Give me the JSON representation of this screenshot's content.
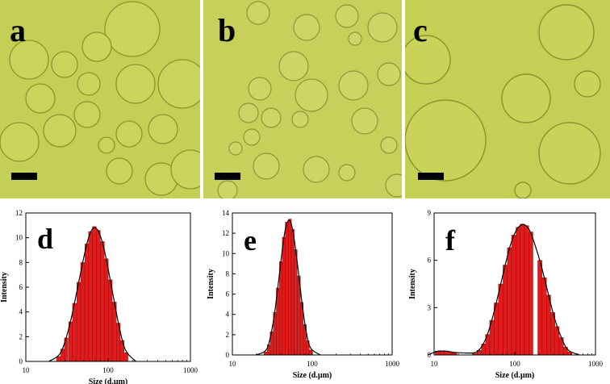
{
  "micrographs": [
    {
      "label": "a",
      "scale_bar": true,
      "background_color": "#c4cf55",
      "droplet_color": "#c9d35a"
    },
    {
      "label": "b",
      "scale_bar": true,
      "background_color": "#c6d05b",
      "droplet_color": "#ccd562"
    },
    {
      "label": "c",
      "scale_bar": true,
      "background_color": "#c4cf55",
      "droplet_color": "#c9d35a"
    }
  ],
  "chart_data": [
    {
      "label": "d",
      "type": "bar",
      "xscale": "log",
      "xlim": [
        10,
        1000
      ],
      "ylim": [
        0,
        12
      ],
      "xticks": [
        "10",
        "100",
        "1000"
      ],
      "yticks": [
        "0",
        "2",
        "4",
        "6",
        "8",
        "10",
        "12"
      ],
      "xlabel": "Size (d.µm)",
      "ylabel": "Intensity",
      "bar_color": "#e11b1b",
      "fit_curve": true,
      "bars": [
        {
          "x": 25,
          "y": 0.4
        },
        {
          "x": 28,
          "y": 1.0
        },
        {
          "x": 31,
          "y": 1.9
        },
        {
          "x": 35,
          "y": 3.2
        },
        {
          "x": 39,
          "y": 4.7
        },
        {
          "x": 44,
          "y": 6.4
        },
        {
          "x": 49,
          "y": 8.0
        },
        {
          "x": 55,
          "y": 9.5
        },
        {
          "x": 61,
          "y": 10.5
        },
        {
          "x": 68,
          "y": 10.9
        },
        {
          "x": 76,
          "y": 10.6
        },
        {
          "x": 85,
          "y": 9.7
        },
        {
          "x": 95,
          "y": 8.3
        },
        {
          "x": 106,
          "y": 6.6
        },
        {
          "x": 119,
          "y": 4.8
        },
        {
          "x": 133,
          "y": 3.1
        },
        {
          "x": 148,
          "y": 1.7
        },
        {
          "x": 165,
          "y": 0.7
        }
      ]
    },
    {
      "label": "e",
      "type": "bar",
      "xscale": "log",
      "xlim": [
        10,
        1000
      ],
      "ylim": [
        0,
        14
      ],
      "xticks": [
        "10",
        "100",
        "1000"
      ],
      "yticks": [
        "0",
        "2",
        "4",
        "6",
        "8",
        "10",
        "12",
        "14"
      ],
      "xlabel": "Size (d.µm)",
      "ylabel": "Intensity",
      "bar_color": "#e11b1b",
      "fit_curve": true,
      "bars": [
        {
          "x": 26,
          "y": 0.3
        },
        {
          "x": 28.5,
          "y": 1.0
        },
        {
          "x": 31,
          "y": 2.3
        },
        {
          "x": 34,
          "y": 4.2
        },
        {
          "x": 37,
          "y": 6.6
        },
        {
          "x": 40.5,
          "y": 9.2
        },
        {
          "x": 44,
          "y": 11.6
        },
        {
          "x": 48,
          "y": 13.1
        },
        {
          "x": 52.5,
          "y": 13.4
        },
        {
          "x": 57,
          "y": 12.4
        },
        {
          "x": 62,
          "y": 10.4
        },
        {
          "x": 68,
          "y": 7.8
        },
        {
          "x": 74,
          "y": 5.2
        },
        {
          "x": 81,
          "y": 3.0
        },
        {
          "x": 88,
          "y": 1.4
        },
        {
          "x": 96,
          "y": 0.5
        }
      ]
    },
    {
      "label": "f",
      "type": "bar",
      "xscale": "log",
      "xlim": [
        10,
        1000
      ],
      "ylim": [
        0,
        9
      ],
      "xticks": [
        "10",
        "100",
        "1000"
      ],
      "yticks": [
        "0",
        "3",
        "6",
        "9"
      ],
      "xlabel": "Size (d.µm)",
      "ylabel": "Intensity",
      "bar_color": "#e11b1b",
      "fit_curve": true,
      "bars": [
        {
          "x": 11,
          "y": 0.25
        },
        {
          "x": 12.5,
          "y": 0.25
        },
        {
          "x": 14,
          "y": 0.25
        },
        {
          "x": 16,
          "y": 0.2
        },
        {
          "x": 18,
          "y": 0.15
        },
        {
          "x": 32,
          "y": 0.1
        },
        {
          "x": 36,
          "y": 0.3
        },
        {
          "x": 41,
          "y": 0.7
        },
        {
          "x": 46,
          "y": 1.3
        },
        {
          "x": 52,
          "y": 2.2
        },
        {
          "x": 59,
          "y": 3.3
        },
        {
          "x": 67,
          "y": 4.5
        },
        {
          "x": 76,
          "y": 5.7
        },
        {
          "x": 86,
          "y": 6.8
        },
        {
          "x": 97,
          "y": 7.6
        },
        {
          "x": 110,
          "y": 8.1
        },
        {
          "x": 124,
          "y": 8.3
        },
        {
          "x": 140,
          "y": 8.2
        },
        {
          "x": 158,
          "y": 7.8
        },
        {
          "x": 205,
          "y": 6.0
        },
        {
          "x": 232,
          "y": 4.9
        },
        {
          "x": 262,
          "y": 3.8
        },
        {
          "x": 296,
          "y": 2.7
        },
        {
          "x": 334,
          "y": 1.8
        },
        {
          "x": 377,
          "y": 1.1
        },
        {
          "x": 425,
          "y": 0.5
        },
        {
          "x": 480,
          "y": 0.2
        }
      ]
    }
  ]
}
